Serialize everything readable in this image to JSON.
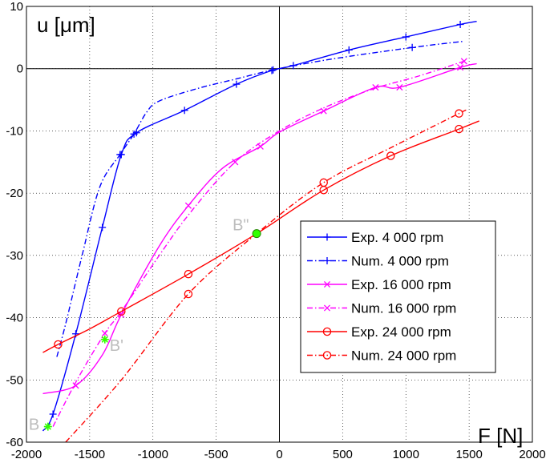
{
  "chart_data": {
    "type": "line",
    "xlabel": "F [N]",
    "ylabel": "u [μm]",
    "xlim": [
      -2000,
      2000
    ],
    "ylim": [
      -60,
      10
    ],
    "xticks": [
      -2000,
      -1500,
      -1000,
      -500,
      0,
      500,
      1000,
      1500,
      2000
    ],
    "yticks": [
      -60,
      -50,
      -40,
      -30,
      -20,
      -10,
      0,
      10
    ],
    "grid": true,
    "legend_position": "lower-right",
    "series": [
      {
        "name": "Exp. 4 000 rpm",
        "color": "#0000ff",
        "dash": "solid",
        "marker": "plus",
        "points": [
          [
            -1870,
            -58.2
          ],
          [
            -1790,
            -55.5
          ],
          [
            -1610,
            -42.6
          ],
          [
            -1400,
            -25.5
          ],
          [
            -1250,
            -13.8
          ],
          [
            -1130,
            -10.3
          ],
          [
            -750,
            -6.7
          ],
          [
            -340,
            -2.5
          ],
          [
            -60,
            -0.3
          ],
          [
            110,
            0.5
          ],
          [
            550,
            3.0
          ],
          [
            1000,
            5.1
          ],
          [
            1430,
            7.1
          ],
          [
            1560,
            7.6
          ]
        ],
        "marker_points": [
          [
            -1790,
            -55.5
          ],
          [
            -1610,
            -42.6
          ],
          [
            -1400,
            -25.5
          ],
          [
            -1250,
            -13.8
          ],
          [
            -1130,
            -10.3
          ],
          [
            -750,
            -6.7
          ],
          [
            -340,
            -2.5
          ],
          [
            -60,
            -0.3
          ],
          [
            110,
            0.5
          ],
          [
            550,
            3.0
          ],
          [
            1000,
            5.1
          ],
          [
            1430,
            7.1
          ]
        ]
      },
      {
        "name": "Num. 4 000 rpm",
        "color": "#0000ff",
        "dash": "dashdot",
        "marker": "plus",
        "points": [
          [
            -1760,
            -46.3
          ],
          [
            -1690,
            -41.0
          ],
          [
            -1560,
            -30.0
          ],
          [
            -1420,
            -19.0
          ],
          [
            -1260,
            -13.8
          ],
          [
            -1150,
            -10.5
          ],
          [
            -1050,
            -7.0
          ],
          [
            -950,
            -5.2
          ],
          [
            -650,
            -3.2
          ],
          [
            -350,
            -1.7
          ],
          [
            -50,
            -0.2
          ],
          [
            400,
            1.5
          ],
          [
            1050,
            3.4
          ],
          [
            1460,
            4.4
          ]
        ],
        "marker_points": [
          [
            -1260,
            -13.8
          ],
          [
            -1150,
            -10.5
          ],
          [
            -50,
            -0.2
          ],
          [
            1050,
            3.4
          ]
        ]
      },
      {
        "name": "Exp. 16 000 rpm",
        "color": "#ff00ff",
        "dash": "solid",
        "marker": "x",
        "points": [
          [
            -1870,
            -52.2
          ],
          [
            -1610,
            -50.9
          ],
          [
            -1400,
            -46.0
          ],
          [
            -1250,
            -39.5
          ],
          [
            -950,
            -28.5
          ],
          [
            -720,
            -22.0
          ],
          [
            -450,
            -16.0
          ],
          [
            -150,
            -12.5
          ],
          [
            0,
            -10.2
          ],
          [
            350,
            -6.8
          ],
          [
            760,
            -3.0
          ],
          [
            950,
            -3.0
          ],
          [
            1430,
            0.2
          ],
          [
            1560,
            0.8
          ]
        ],
        "marker_points": [
          [
            -1610,
            -50.9
          ],
          [
            -1250,
            -39.5
          ],
          [
            -720,
            -22.0
          ],
          [
            -150,
            -12.5
          ],
          [
            350,
            -6.8
          ],
          [
            760,
            -3.0
          ],
          [
            950,
            -3.0
          ],
          [
            1430,
            0.2
          ]
        ]
      },
      {
        "name": "Num. 16 000 rpm",
        "color": "#ff00ff",
        "dash": "dashdot",
        "marker": "x",
        "points": [
          [
            -1790,
            -57.5
          ],
          [
            -1600,
            -50.0
          ],
          [
            -1380,
            -42.5
          ],
          [
            -1250,
            -39.0
          ],
          [
            -950,
            -30.0
          ],
          [
            -700,
            -23.0
          ],
          [
            -350,
            -15.0
          ],
          [
            0,
            -10.0
          ],
          [
            350,
            -6.3
          ],
          [
            750,
            -3.2
          ],
          [
            1100,
            -1.2
          ],
          [
            1460,
            1.2
          ]
        ],
        "marker_points": [
          [
            -1380,
            -42.5
          ],
          [
            -350,
            -15.0
          ],
          [
            1460,
            1.2
          ]
        ]
      },
      {
        "name": "Exp. 24 000 rpm",
        "color": "#ff0000",
        "dash": "solid",
        "marker": "circle",
        "points": [
          [
            -1870,
            -45.6
          ],
          [
            -1750,
            -44.3
          ],
          [
            -1500,
            -41.8
          ],
          [
            -1250,
            -39.0
          ],
          [
            -720,
            -33.0
          ],
          [
            -180,
            -26.5
          ],
          [
            350,
            -19.5
          ],
          [
            880,
            -14.0
          ],
          [
            1420,
            -9.7
          ],
          [
            1580,
            -8.4
          ]
        ],
        "marker_points": [
          [
            -1750,
            -44.3
          ],
          [
            -1250,
            -39.0
          ],
          [
            -720,
            -33.0
          ],
          [
            -180,
            -26.5
          ],
          [
            350,
            -19.5
          ],
          [
            880,
            -14.0
          ],
          [
            1420,
            -9.7
          ]
        ]
      },
      {
        "name": "Num. 24 000 rpm",
        "color": "#ff0000",
        "dash": "dashdot",
        "marker": "circle",
        "points": [
          [
            -1690,
            -60.0
          ],
          [
            -1250,
            -50.0
          ],
          [
            -720,
            -36.2
          ],
          [
            -180,
            -26.5
          ],
          [
            350,
            -18.3
          ],
          [
            900,
            -12.5
          ],
          [
            1420,
            -7.2
          ],
          [
            1460,
            -6.8
          ]
        ],
        "marker_points": [
          [
            -720,
            -36.2
          ],
          [
            350,
            -18.3
          ],
          [
            1420,
            -7.2
          ]
        ]
      }
    ],
    "annotations": [
      {
        "label": "B",
        "x": -1830,
        "y": -57.5
      },
      {
        "label": "B'",
        "x": -1380,
        "y": -43.5
      },
      {
        "label": "B\"",
        "x": -180,
        "y": -26.5
      }
    ],
    "highlight_color": "#33ff00"
  }
}
